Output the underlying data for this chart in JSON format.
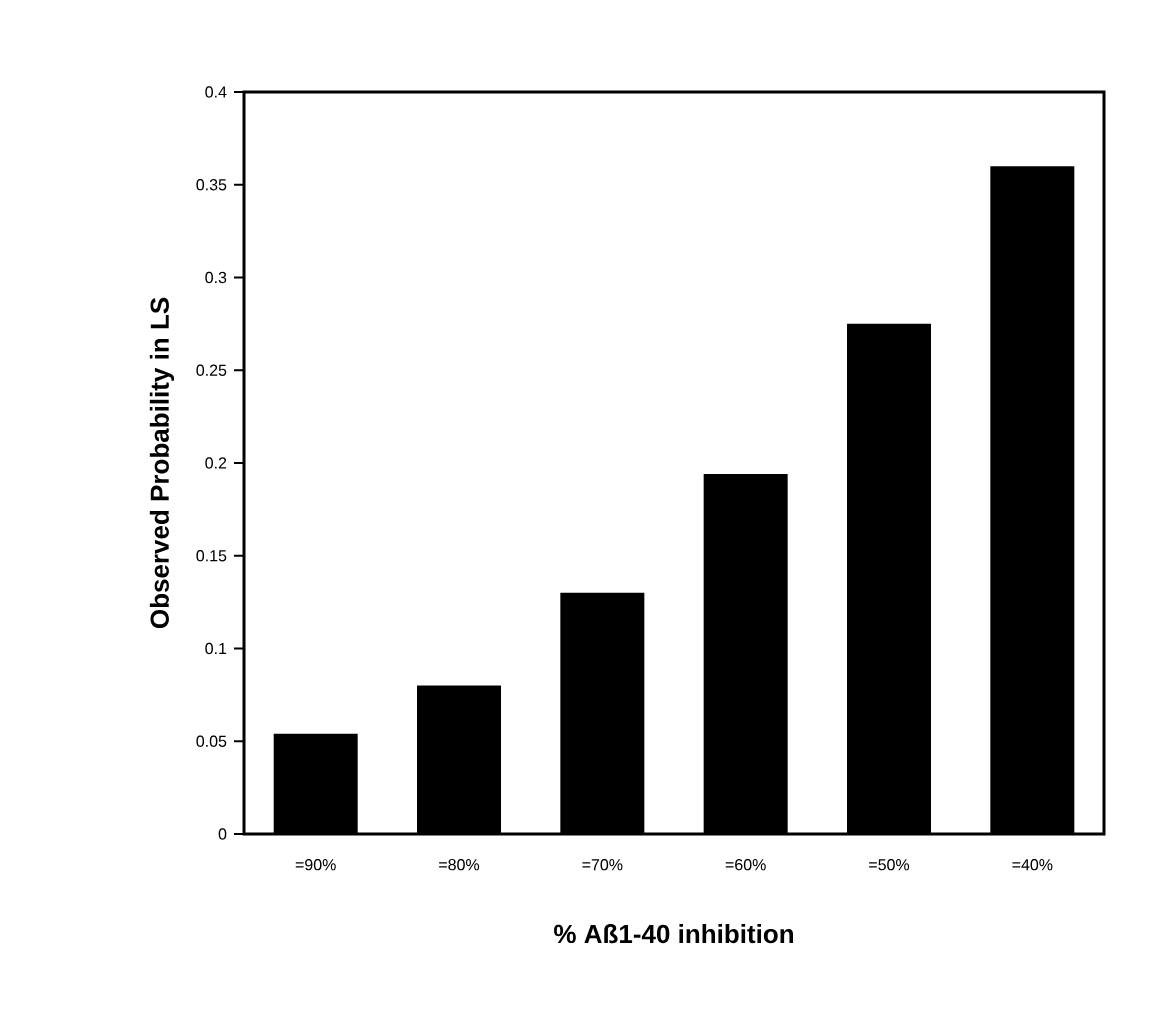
{
  "chart_data": {
    "type": "bar",
    "xlabel": "% Aß1-40 inhibition",
    "ylabel": "Observed Probability in LS",
    "categories": [
      "=90%",
      "=80%",
      "=70%",
      "=60%",
      "=50%",
      "=40%"
    ],
    "values": [
      0.054,
      0.08,
      0.13,
      0.194,
      0.275,
      0.36
    ],
    "color": "#000000",
    "ylim": [
      0,
      0.4
    ],
    "yticks": [
      0,
      0.05,
      0.1,
      0.15,
      0.2,
      0.25,
      0.3,
      0.35,
      0.4
    ],
    "grid": false
  }
}
